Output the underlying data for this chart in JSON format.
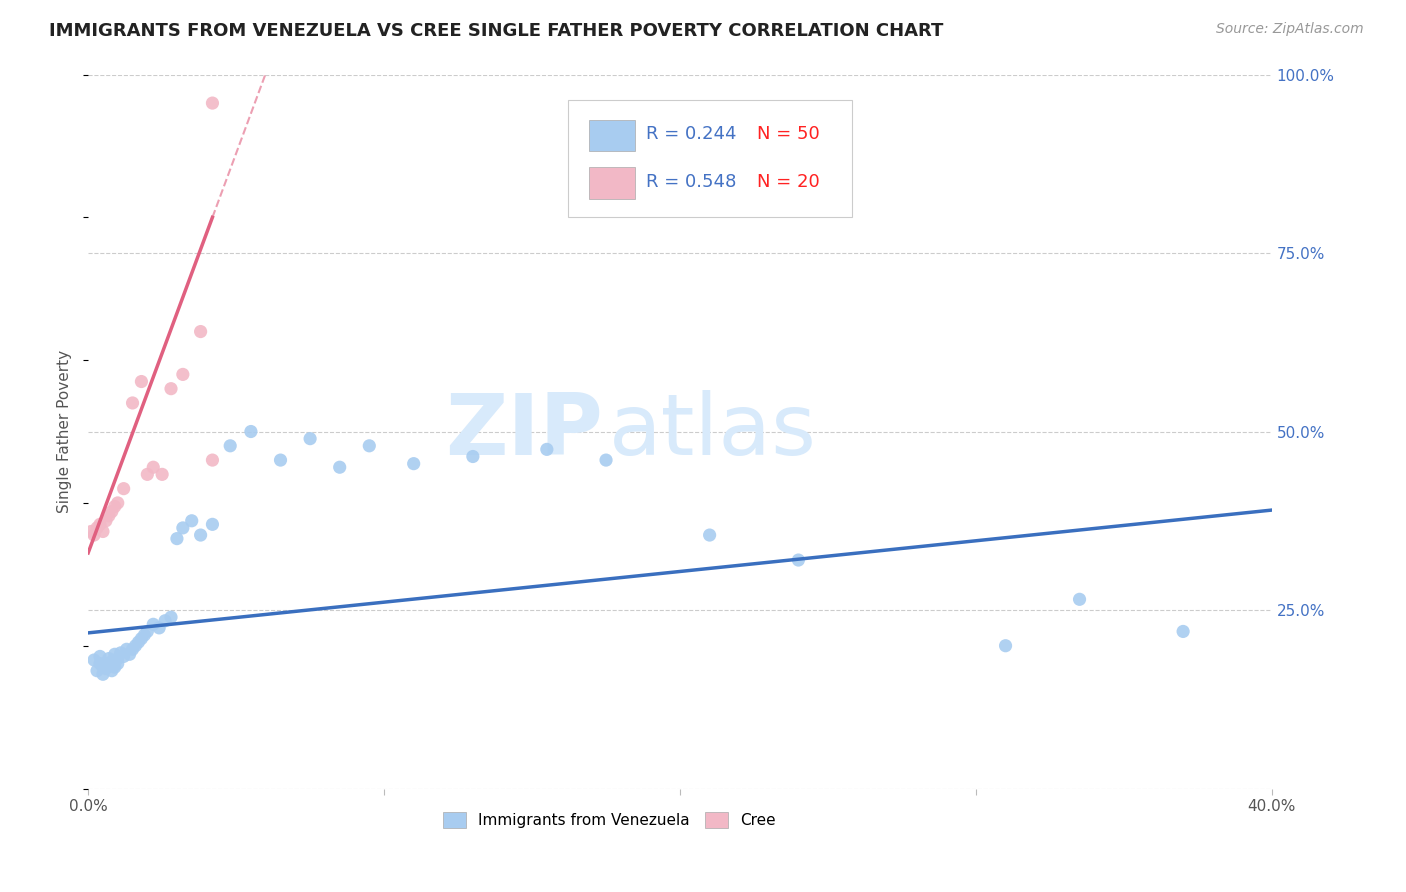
{
  "title": "IMMIGRANTS FROM VENEZUELA VS CREE SINGLE FATHER POVERTY CORRELATION CHART",
  "source": "Source: ZipAtlas.com",
  "ylabel": "Single Father Poverty",
  "xlim": [
    0.0,
    0.4
  ],
  "ylim": [
    0.0,
    1.0
  ],
  "yticks": [
    0.0,
    0.25,
    0.5,
    0.75,
    1.0
  ],
  "ytick_labels_right": [
    "",
    "25.0%",
    "50.0%",
    "75.0%",
    "100.0%"
  ],
  "blue_R": 0.244,
  "blue_N": 50,
  "pink_R": 0.548,
  "pink_N": 20,
  "blue_color": "#A8CCF0",
  "pink_color": "#F2B8C6",
  "blue_line_color": "#3A6FBF",
  "pink_line_color": "#E06080",
  "legend_R_color": "#4472C4",
  "legend_N_color": "#FF2222",
  "watermark_zip": "ZIP",
  "watermark_atlas": "atlas",
  "watermark_color": "#D8EAFB",
  "blue_scatter_x": [
    0.002,
    0.003,
    0.004,
    0.004,
    0.005,
    0.005,
    0.006,
    0.006,
    0.007,
    0.007,
    0.008,
    0.008,
    0.009,
    0.009,
    0.01,
    0.01,
    0.011,
    0.012,
    0.013,
    0.014,
    0.015,
    0.016,
    0.017,
    0.018,
    0.019,
    0.02,
    0.022,
    0.024,
    0.026,
    0.028,
    0.03,
    0.032,
    0.035,
    0.038,
    0.042,
    0.048,
    0.055,
    0.065,
    0.075,
    0.085,
    0.095,
    0.11,
    0.13,
    0.155,
    0.175,
    0.21,
    0.24,
    0.31,
    0.335,
    0.37
  ],
  "blue_scatter_y": [
    0.18,
    0.165,
    0.175,
    0.185,
    0.16,
    0.17,
    0.175,
    0.168,
    0.172,
    0.182,
    0.178,
    0.165,
    0.17,
    0.188,
    0.175,
    0.182,
    0.19,
    0.185,
    0.195,
    0.188,
    0.195,
    0.2,
    0.205,
    0.21,
    0.215,
    0.22,
    0.23,
    0.225,
    0.235,
    0.24,
    0.35,
    0.365,
    0.375,
    0.355,
    0.37,
    0.48,
    0.5,
    0.46,
    0.49,
    0.45,
    0.48,
    0.455,
    0.465,
    0.475,
    0.46,
    0.355,
    0.32,
    0.2,
    0.265,
    0.22
  ],
  "pink_scatter_x": [
    0.001,
    0.002,
    0.003,
    0.004,
    0.005,
    0.006,
    0.007,
    0.008,
    0.009,
    0.01,
    0.012,
    0.015,
    0.018,
    0.02,
    0.022,
    0.025,
    0.028,
    0.032,
    0.038,
    0.042
  ],
  "pink_scatter_y": [
    0.36,
    0.355,
    0.365,
    0.37,
    0.36,
    0.375,
    0.382,
    0.388,
    0.395,
    0.4,
    0.42,
    0.54,
    0.57,
    0.44,
    0.45,
    0.44,
    0.56,
    0.58,
    0.64,
    0.46
  ],
  "pink_outlier_x": [
    0.042
  ],
  "pink_outlier_y": [
    0.96
  ],
  "blue_trend_x0": 0.0,
  "blue_trend_y0": 0.218,
  "blue_trend_x1": 0.4,
  "blue_trend_y1": 0.39,
  "pink_trend_x0": 0.0,
  "pink_trend_y0": 0.33,
  "pink_trend_x1": 0.042,
  "pink_trend_y1": 0.8
}
